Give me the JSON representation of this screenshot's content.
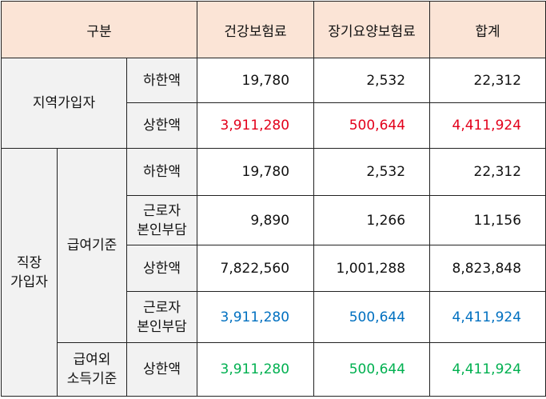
{
  "header": {
    "category": "구분",
    "health": "건강보험료",
    "longterm": "장기요양보험료",
    "total": "합계"
  },
  "regional": {
    "group": "지역가입자",
    "rows": [
      {
        "label": "하한액",
        "health": "19,780",
        "longterm": "2,532",
        "total": "22,312",
        "color": "#111111"
      },
      {
        "label": "상한액",
        "health": "3,911,280",
        "longterm": "500,644",
        "total": "4,411,924",
        "color": "#e3001b"
      }
    ]
  },
  "employee": {
    "group": "직장\n가입자",
    "salary_basis": "급여기준",
    "non_salary_basis": "급여외\n소득기준",
    "rows": [
      {
        "label": "하한액",
        "health": "19,780",
        "longterm": "2,532",
        "total": "22,312",
        "color": "#111111"
      },
      {
        "label": "근로자\n본인부담",
        "health": "9,890",
        "longterm": "1,266",
        "total": "11,156",
        "color": "#111111"
      },
      {
        "label": "상한액",
        "health": "7,822,560",
        "longterm": "1,001,288",
        "total": "8,823,848",
        "color": "#111111"
      },
      {
        "label": "근로자\n본인부담",
        "health": "3,911,280",
        "longterm": "500,644",
        "total": "4,411,924",
        "color": "#0070c0"
      },
      {
        "label": "상한액",
        "health": "3,911,280",
        "longterm": "500,644",
        "total": "4,411,924",
        "color": "#00b050"
      }
    ]
  }
}
